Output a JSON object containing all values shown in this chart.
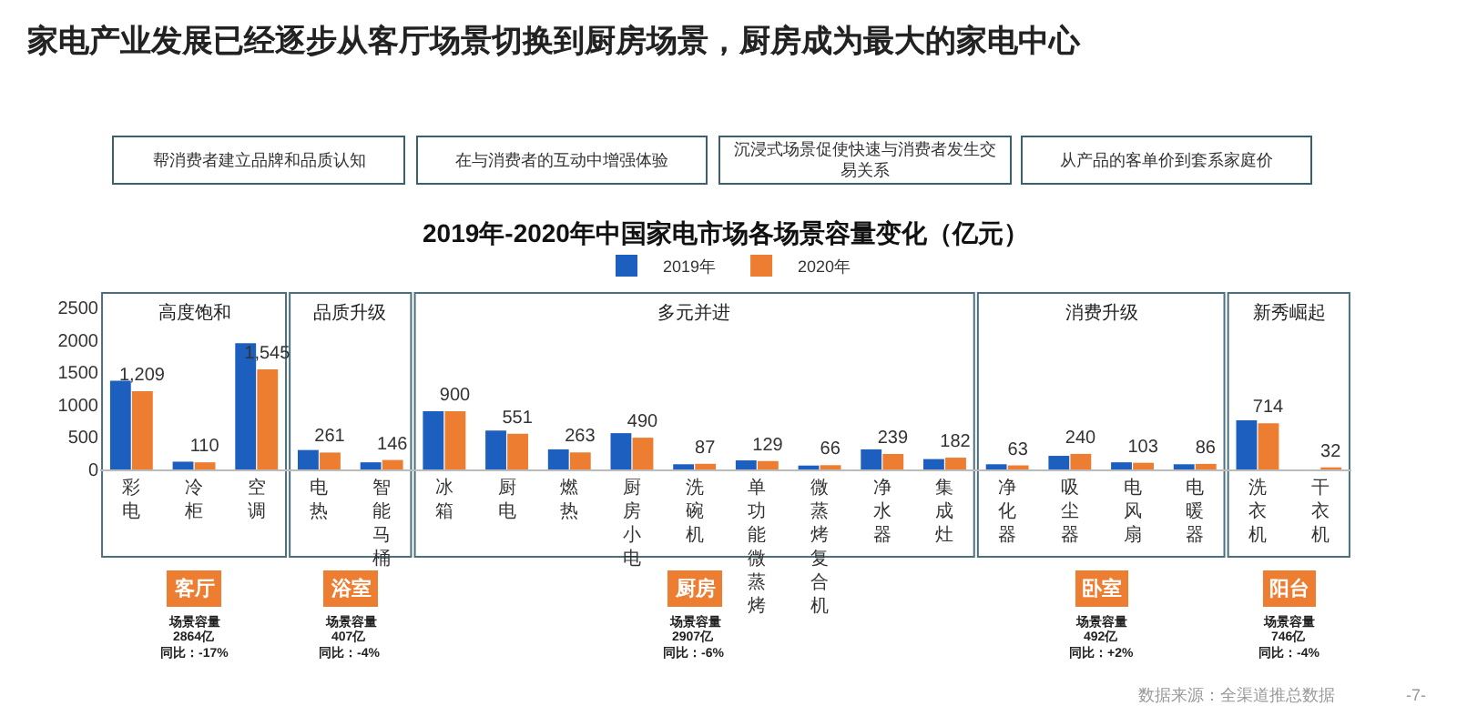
{
  "chart_data": {
    "type": "bar",
    "title": "2019年-2020年中国家电市场各场景容量变化（亿元）",
    "categories": [
      "彩电",
      "冷柜",
      "空调",
      "电热",
      "智能马桶",
      "冰箱",
      "厨电",
      "燃热",
      "厨房小电",
      "洗碗机",
      "单功能微蒸烤",
      "微蒸烤复合机",
      "净水器",
      "集成灶",
      "净化器",
      "吸尘器",
      "电风扇",
      "电暖器",
      "洗衣机",
      "干衣机"
    ],
    "series": [
      {
        "name": "2019年",
        "color": "#1c5fbe",
        "values": [
          1370,
          120,
          1950,
          300,
          110,
          900,
          600,
          310,
          560,
          80,
          140,
          60,
          310,
          160,
          80,
          210,
          110,
          80,
          760,
          null
        ]
      },
      {
        "name": "2020年",
        "color": "#ed7d31",
        "values": [
          1209,
          110,
          1545,
          261,
          146,
          900,
          551,
          263,
          490,
          87,
          129,
          66,
          239,
          182,
          63,
          240,
          103,
          86,
          714,
          32
        ],
        "value_labels": [
          "1,209",
          "110",
          "1,545",
          "261",
          "146",
          "900",
          "551",
          "263",
          "490",
          "87",
          "129",
          "66",
          "239",
          "182",
          "63",
          "240",
          "103",
          "86",
          "714",
          "32"
        ]
      }
    ],
    "ylim": [
      0,
      2500
    ],
    "yticks": [
      0,
      500,
      1000,
      1500,
      2000,
      2500
    ],
    "legend": "top",
    "grid": false,
    "annotations": [
      "家电产业发展已经逐步从客厅场景切换到厨房场景，厨房成为最大的家电中心",
      "帮消费者建立品牌和品质认知",
      "在与消费者的互动中增强体验",
      "沉浸式场景促使快速与消费者发生交易关系",
      "从产品的客单价到套系家庭价",
      "高度饱和",
      "品质升级",
      "多元并进",
      "消费升级",
      "新秀崛起",
      "客厅",
      "浴室",
      "厨房",
      "卧室",
      "阳台",
      "场景容量",
      "2864亿",
      "同比：-17%",
      "场景容量",
      "407亿",
      "同比：-4%",
      "场景容量",
      "2907亿",
      "同比：-6%",
      "场景容量",
      "492亿",
      "同比：+2%",
      "场景容量",
      "746亿",
      "同比：-4%",
      "数据来源：全渠道推总数据",
      "-7-"
    ]
  }
}
